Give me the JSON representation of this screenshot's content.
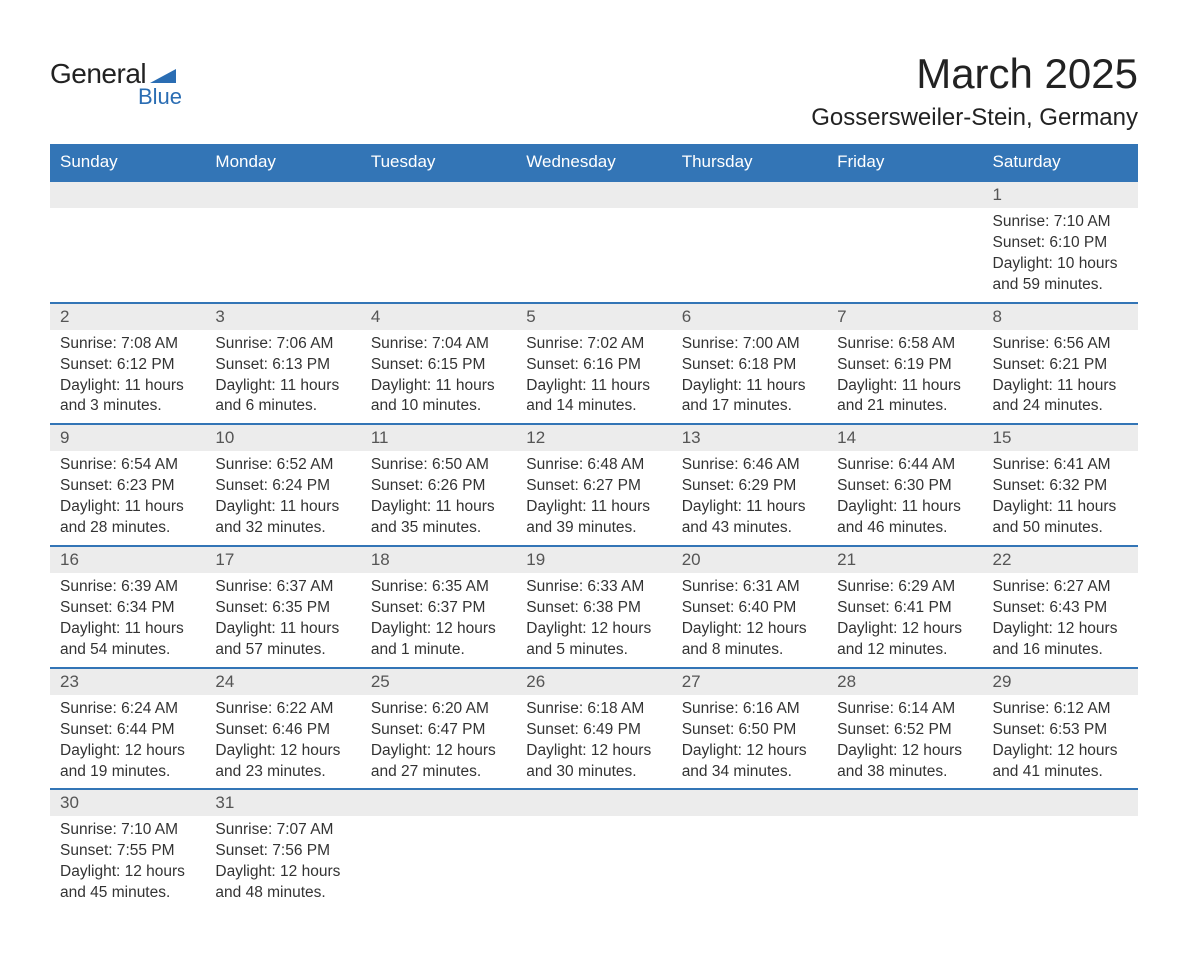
{
  "brand": {
    "word1": "General",
    "word2": "Blue",
    "shape_color": "#2a6db3"
  },
  "title": "March 2025",
  "location": "Gossersweiler-Stein, Germany",
  "colors": {
    "header_bg": "#3375b6",
    "header_fg": "#ffffff",
    "daynum_bg": "#ececec",
    "rule": "#3375b6",
    "text": "#333333"
  },
  "weekdays": [
    "Sunday",
    "Monday",
    "Tuesday",
    "Wednesday",
    "Thursday",
    "Friday",
    "Saturday"
  ],
  "weeks": [
    [
      null,
      null,
      null,
      null,
      null,
      null,
      {
        "day": 1,
        "sunrise": "7:10 AM",
        "sunset": "6:10 PM",
        "daylight": "10 hours and 59 minutes."
      }
    ],
    [
      {
        "day": 2,
        "sunrise": "7:08 AM",
        "sunset": "6:12 PM",
        "daylight": "11 hours and 3 minutes."
      },
      {
        "day": 3,
        "sunrise": "7:06 AM",
        "sunset": "6:13 PM",
        "daylight": "11 hours and 6 minutes."
      },
      {
        "day": 4,
        "sunrise": "7:04 AM",
        "sunset": "6:15 PM",
        "daylight": "11 hours and 10 minutes."
      },
      {
        "day": 5,
        "sunrise": "7:02 AM",
        "sunset": "6:16 PM",
        "daylight": "11 hours and 14 minutes."
      },
      {
        "day": 6,
        "sunrise": "7:00 AM",
        "sunset": "6:18 PM",
        "daylight": "11 hours and 17 minutes."
      },
      {
        "day": 7,
        "sunrise": "6:58 AM",
        "sunset": "6:19 PM",
        "daylight": "11 hours and 21 minutes."
      },
      {
        "day": 8,
        "sunrise": "6:56 AM",
        "sunset": "6:21 PM",
        "daylight": "11 hours and 24 minutes."
      }
    ],
    [
      {
        "day": 9,
        "sunrise": "6:54 AM",
        "sunset": "6:23 PM",
        "daylight": "11 hours and 28 minutes."
      },
      {
        "day": 10,
        "sunrise": "6:52 AM",
        "sunset": "6:24 PM",
        "daylight": "11 hours and 32 minutes."
      },
      {
        "day": 11,
        "sunrise": "6:50 AM",
        "sunset": "6:26 PM",
        "daylight": "11 hours and 35 minutes."
      },
      {
        "day": 12,
        "sunrise": "6:48 AM",
        "sunset": "6:27 PM",
        "daylight": "11 hours and 39 minutes."
      },
      {
        "day": 13,
        "sunrise": "6:46 AM",
        "sunset": "6:29 PM",
        "daylight": "11 hours and 43 minutes."
      },
      {
        "day": 14,
        "sunrise": "6:44 AM",
        "sunset": "6:30 PM",
        "daylight": "11 hours and 46 minutes."
      },
      {
        "day": 15,
        "sunrise": "6:41 AM",
        "sunset": "6:32 PM",
        "daylight": "11 hours and 50 minutes."
      }
    ],
    [
      {
        "day": 16,
        "sunrise": "6:39 AM",
        "sunset": "6:34 PM",
        "daylight": "11 hours and 54 minutes."
      },
      {
        "day": 17,
        "sunrise": "6:37 AM",
        "sunset": "6:35 PM",
        "daylight": "11 hours and 57 minutes."
      },
      {
        "day": 18,
        "sunrise": "6:35 AM",
        "sunset": "6:37 PM",
        "daylight": "12 hours and 1 minute."
      },
      {
        "day": 19,
        "sunrise": "6:33 AM",
        "sunset": "6:38 PM",
        "daylight": "12 hours and 5 minutes."
      },
      {
        "day": 20,
        "sunrise": "6:31 AM",
        "sunset": "6:40 PM",
        "daylight": "12 hours and 8 minutes."
      },
      {
        "day": 21,
        "sunrise": "6:29 AM",
        "sunset": "6:41 PM",
        "daylight": "12 hours and 12 minutes."
      },
      {
        "day": 22,
        "sunrise": "6:27 AM",
        "sunset": "6:43 PM",
        "daylight": "12 hours and 16 minutes."
      }
    ],
    [
      {
        "day": 23,
        "sunrise": "6:24 AM",
        "sunset": "6:44 PM",
        "daylight": "12 hours and 19 minutes."
      },
      {
        "day": 24,
        "sunrise": "6:22 AM",
        "sunset": "6:46 PM",
        "daylight": "12 hours and 23 minutes."
      },
      {
        "day": 25,
        "sunrise": "6:20 AM",
        "sunset": "6:47 PM",
        "daylight": "12 hours and 27 minutes."
      },
      {
        "day": 26,
        "sunrise": "6:18 AM",
        "sunset": "6:49 PM",
        "daylight": "12 hours and 30 minutes."
      },
      {
        "day": 27,
        "sunrise": "6:16 AM",
        "sunset": "6:50 PM",
        "daylight": "12 hours and 34 minutes."
      },
      {
        "day": 28,
        "sunrise": "6:14 AM",
        "sunset": "6:52 PM",
        "daylight": "12 hours and 38 minutes."
      },
      {
        "day": 29,
        "sunrise": "6:12 AM",
        "sunset": "6:53 PM",
        "daylight": "12 hours and 41 minutes."
      }
    ],
    [
      {
        "day": 30,
        "sunrise": "7:10 AM",
        "sunset": "7:55 PM",
        "daylight": "12 hours and 45 minutes."
      },
      {
        "day": 31,
        "sunrise": "7:07 AM",
        "sunset": "7:56 PM",
        "daylight": "12 hours and 48 minutes."
      },
      null,
      null,
      null,
      null,
      null
    ]
  ],
  "labels": {
    "sunrise": "Sunrise:",
    "sunset": "Sunset:",
    "daylight": "Daylight:"
  }
}
